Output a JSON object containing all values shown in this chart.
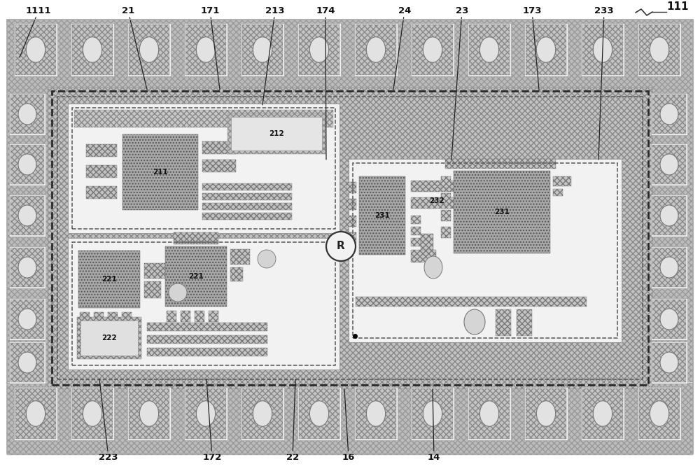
{
  "fig_width": 10.0,
  "fig_height": 6.73,
  "bg_color": "#ffffff",
  "hatch_dense": "xxxx",
  "hatch_dot": "....",
  "fc_hatch": "#c8c8c8",
  "fc_white": "#f8f8f8",
  "fc_chip": "#b5b5b5",
  "ec_main": "#777777",
  "ec_dark": "#444444",
  "labels_top": [
    "1111",
    "21",
    "171",
    "213",
    "174",
    "24",
    "23",
    "173",
    "233"
  ],
  "labels_bottom": [
    "223",
    "172",
    "22",
    "16",
    "14"
  ],
  "label_111": "111",
  "label_R": "R"
}
